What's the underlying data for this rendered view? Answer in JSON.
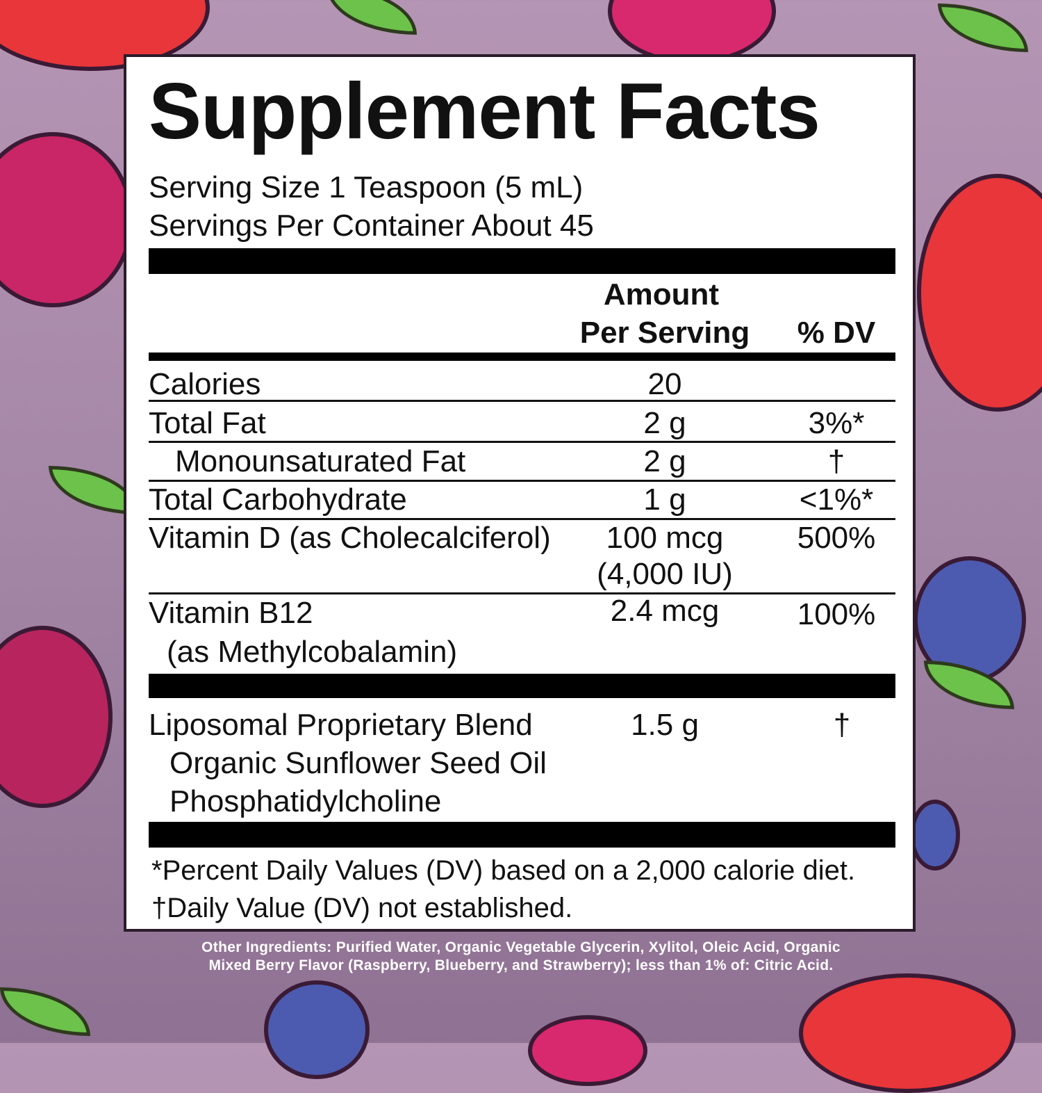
{
  "label": {
    "title": "Supplement Facts",
    "serving_size": "Serving Size 1 Teaspoon (5 mL)",
    "servings_per_container": "Servings Per Container About 45",
    "header": {
      "amount_line1": "Amount",
      "amount_line2": "Per Serving",
      "dv": "% DV"
    },
    "rows": [
      {
        "name": "Calories",
        "amount": "20",
        "dv": ""
      },
      {
        "name": "Total Fat",
        "amount": "2 g",
        "dv": "3%*"
      },
      {
        "name": "Monounsaturated Fat",
        "amount": "2 g",
        "dv": "†"
      },
      {
        "name": "Total Carbohydrate",
        "amount": "1 g",
        "dv": "<1%*"
      },
      {
        "name": "Vitamin D (as Cholecalciferol)",
        "amount": "100 mcg",
        "amount2": "(4,000 IU)",
        "dv": "500%"
      },
      {
        "name": "Vitamin B12",
        "name2": "(as Methylcobalamin)",
        "amount": "2.4 mcg",
        "dv": "100%"
      }
    ],
    "blend": {
      "name": "Liposomal Proprietary Blend",
      "sub1": "Organic Sunflower Seed Oil",
      "sub2": "Phosphatidylcholine",
      "amount": "1.5 g",
      "dv": "†"
    },
    "footnote1": "*Percent Daily Values (DV) based on a 2,000 calorie diet.",
    "footnote2": "†Daily Value (DV) not established."
  },
  "other_ingredients": {
    "line1": "Other Ingredients: Purified Water, Organic Vegetable Glycerin, Xylitol, Oleic Acid, Organic",
    "line2": "Mixed Berry Flavor (Raspberry, Blueberry, and Strawberry); less than 1% of: Citric Acid."
  },
  "colors": {
    "background": "#a486a6",
    "panel": "#ffffff",
    "text": "#111111",
    "rule": "#000000"
  }
}
